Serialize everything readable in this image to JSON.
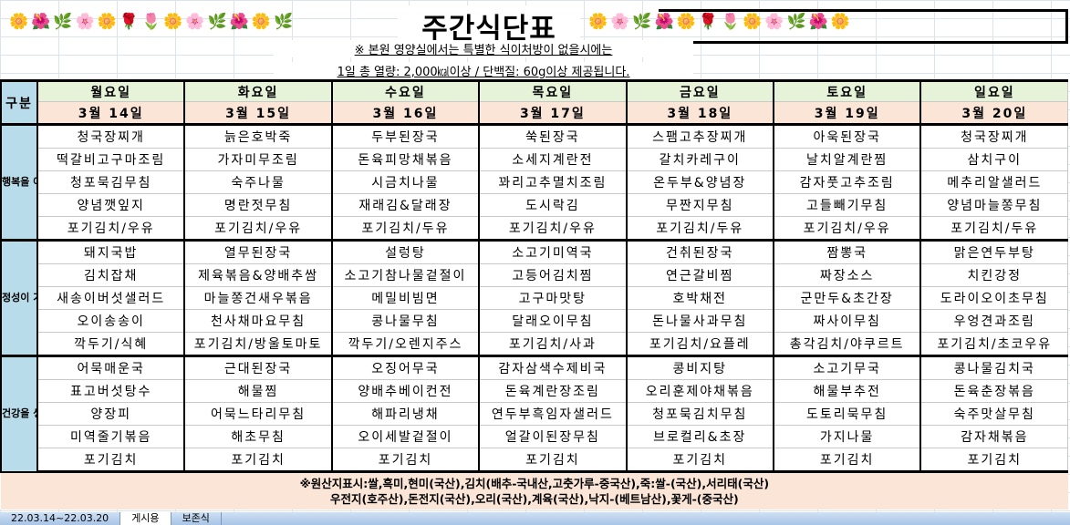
{
  "title": "주간식단표",
  "notes": [
    "※ 본원 영양실에서는 특별한 식이처방이 없을시에는",
    "1일 총 열량: 2,000㎉이상 / 단백질: 60g이상 제공됩니다."
  ],
  "gubun_label": "구분",
  "days": [
    "월요일",
    "화요일",
    "수요일",
    "목요일",
    "금요일",
    "토요일",
    "일요일"
  ],
  "dates": [
    "3월 14일",
    "3월 15일",
    "3월 16일",
    "3월 17일",
    "3월 18일",
    "3월 19일",
    "3월 20일"
  ],
  "meals": [
    {
      "label": "행복을 여는 아침",
      "rows": [
        [
          "청국장찌개",
          "늙은호박죽",
          "두부된장국",
          "쑥된장국",
          "스팸고추장찌개",
          "아욱된장국",
          "청국장찌개"
        ],
        [
          "떡갈비고구마조림",
          "가자미무조림",
          "돈육피망채볶음",
          "소세지계란전",
          "갈치카레구이",
          "날치알계란찜",
          "삼치구이"
        ],
        [
          "청포묵김무침",
          "숙주나물",
          "시금치나물",
          "꽈리고추멸치조림",
          "온두부&양념장",
          "감자풋고추조림",
          "메추리알샐러드"
        ],
        [
          "양념깻잎지",
          "명란젓무침",
          "재래김&달래장",
          "도시락김",
          "무짠지무침",
          "고들빼기무침",
          "양념마늘쫑무침"
        ],
        [
          "포기김치/우유",
          "포기김치/우유",
          "포기김치/두유",
          "포기김치/우유",
          "포기김치/두유",
          "포기김치/우유",
          "포기김치/두유"
        ]
      ]
    },
    {
      "label": "정성이 가득한 점심",
      "rows": [
        [
          "돼지국밥",
          "열무된장국",
          "설렁탕",
          "소고기미역국",
          "건취된장국",
          "짬뽕국",
          "맑은연두부탕"
        ],
        [
          "김치잡채",
          "제육볶음&양배추쌈",
          "소고기참나물겉절이",
          "고등어김치찜",
          "연근갈비찜",
          "짜장소스",
          "치킨강정"
        ],
        [
          "새송이버섯샐러드",
          "마늘쫑건새우볶음",
          "메밀비빔면",
          "고구마맛탕",
          "호박채전",
          "군만두&초간장",
          "도라이오이초무침"
        ],
        [
          "오이송송이",
          "천사채마요무침",
          "콩나물무침",
          "달래오이무침",
          "돈나물사과무침",
          "짜사이무침",
          "우엉견과조림"
        ],
        [
          "깍두기/식혜",
          "포기김치/방울토마토",
          "깍두기/오렌지주스",
          "포기김치/사과",
          "포기김치/요플레",
          "총각김치/야쿠르트",
          "포기김치/초코우유"
        ]
      ]
    },
    {
      "label": "건강을 생각한 저녁",
      "rows": [
        [
          "어묵매운국",
          "근대된장국",
          "오징어무국",
          "감자삼색수제비국",
          "콩비지탕",
          "소고기무국",
          "콩나물김치국"
        ],
        [
          "표고버섯탕수",
          "해물찜",
          "양배추베이컨전",
          "돈육계란장조림",
          "오리훈제야채볶음",
          "해물부추전",
          "돈육춘장볶음"
        ],
        [
          "양장피",
          "어묵느타리무침",
          "해파리냉채",
          "연두부흑임자샐러드",
          "청포묵김치무침",
          "도토리묵무침",
          "숙주맛살무침"
        ],
        [
          "미역줄기볶음",
          "해초무침",
          "오이세발겉절이",
          "얼갈이된장무침",
          "브로컬리&초장",
          "가지나물",
          "감자채볶음"
        ],
        [
          "포기김치",
          "포기김치",
          "포기김치",
          "포기김치",
          "포기김치",
          "포기김치",
          "포기김치"
        ]
      ]
    }
  ],
  "footer": [
    "※원산지표시:쌀,흑미,현미(국산),김치(배추-국내산,고춧가루-중국산),죽:쌀-(국산),서리태(국산)",
    "우전지(호주산),돈전지(국산),오리(국산),계육(국산),낙지-(베트남산),꽃게-(중국산)"
  ],
  "sheet_tabs": [
    {
      "label": "22.03.14~22.03.20",
      "active": false
    },
    {
      "label": "게시용",
      "active": true
    },
    {
      "label": "보존식",
      "active": false
    }
  ],
  "colors": {
    "day_header": "#e6f3d8",
    "date_header": "#fbe5d6",
    "meal_label": "#b8dcea"
  }
}
